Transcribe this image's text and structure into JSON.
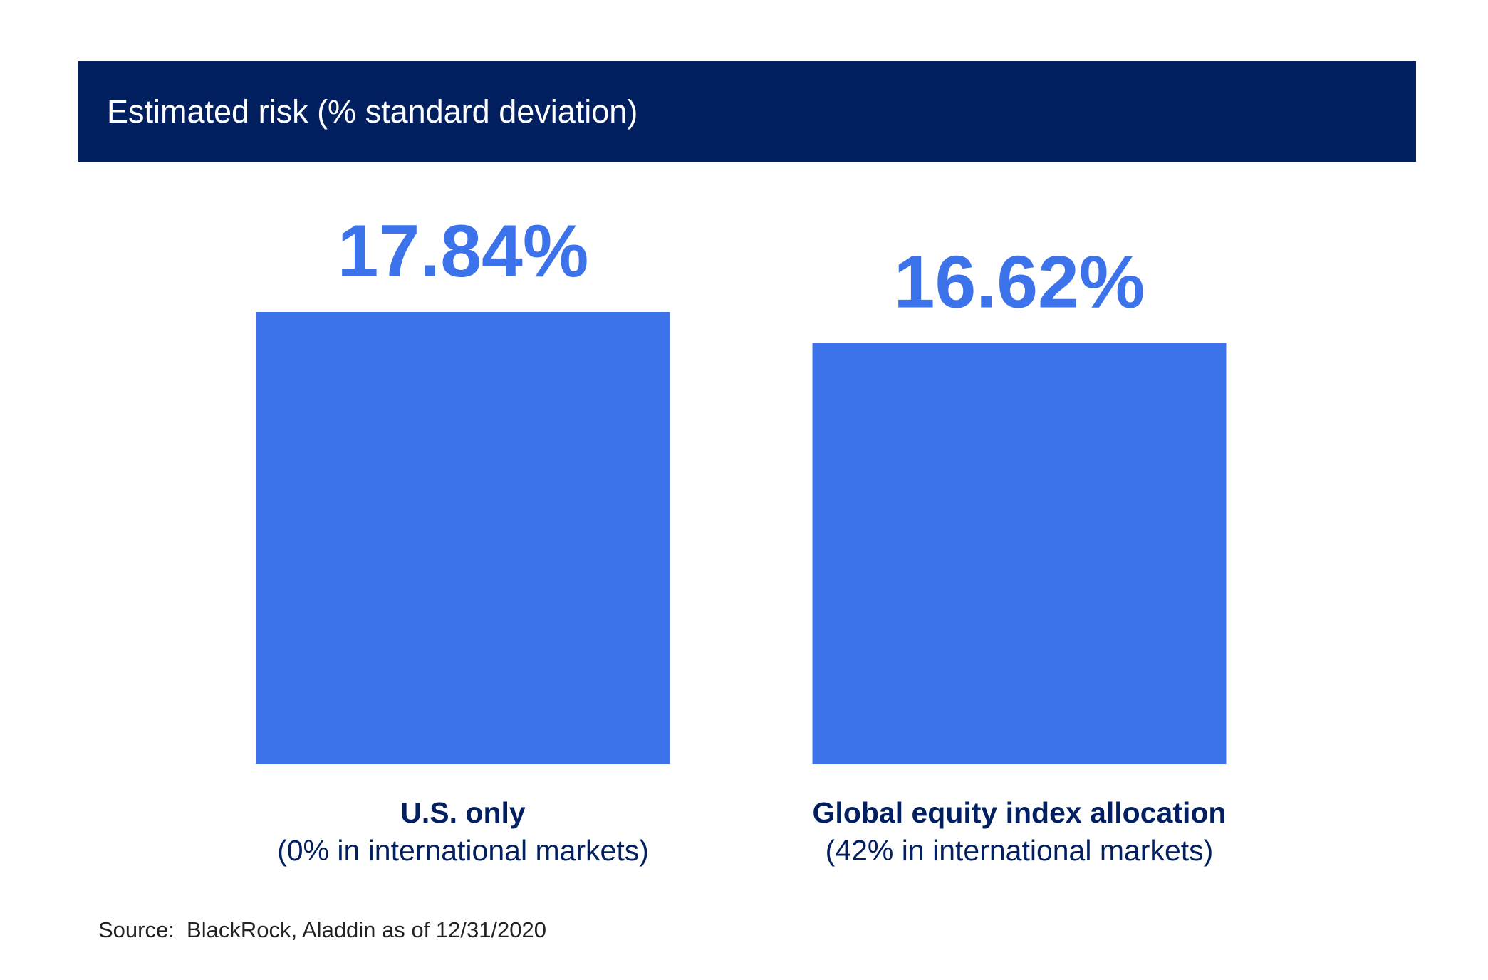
{
  "chart_data": {
    "type": "bar",
    "title": "Estimated risk (% standard deviation)",
    "categories": [
      "U.S. only",
      "Global equity index allocation"
    ],
    "category_sublabels": [
      "(0% in international markets)",
      "(42% in international markets)"
    ],
    "values": [
      17.84,
      16.62
    ],
    "value_labels": [
      "17.84%",
      "16.62%"
    ],
    "ylim": [
      0,
      17.84
    ],
    "xlabel": "",
    "ylabel": "",
    "grid": false,
    "colors": {
      "bar": "#3d73ea",
      "value_label": "#3d73ea",
      "title_bar": "#021f60",
      "category_label": "#021f60"
    }
  },
  "source": "Source:  BlackRock, Aladdin as of 12/31/2020"
}
